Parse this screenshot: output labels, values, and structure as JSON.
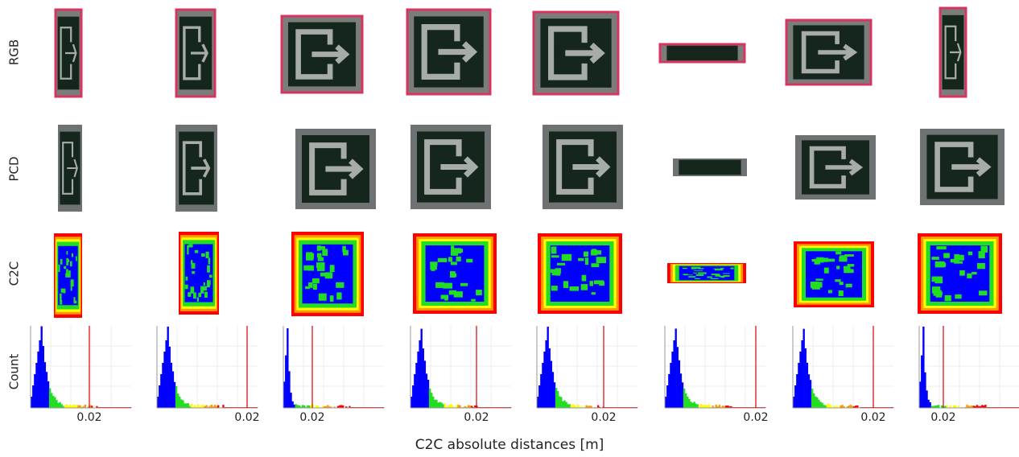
{
  "row_labels": [
    "RGB",
    "PCD",
    "C2C",
    "Count"
  ],
  "histograms": [
    {
      "tick_label": "0.02"
    },
    {
      "tick_label": "0.02"
    },
    {
      "tick_label": "0.02"
    },
    {
      "tick_label": "0.02"
    },
    {
      "tick_label": "0.02"
    },
    {
      "tick_label": "0.02"
    },
    {
      "tick_label": "0.02"
    },
    {
      "tick_label": "0.02"
    }
  ],
  "x_axis_label": "C2C absolute distances [m]"
}
